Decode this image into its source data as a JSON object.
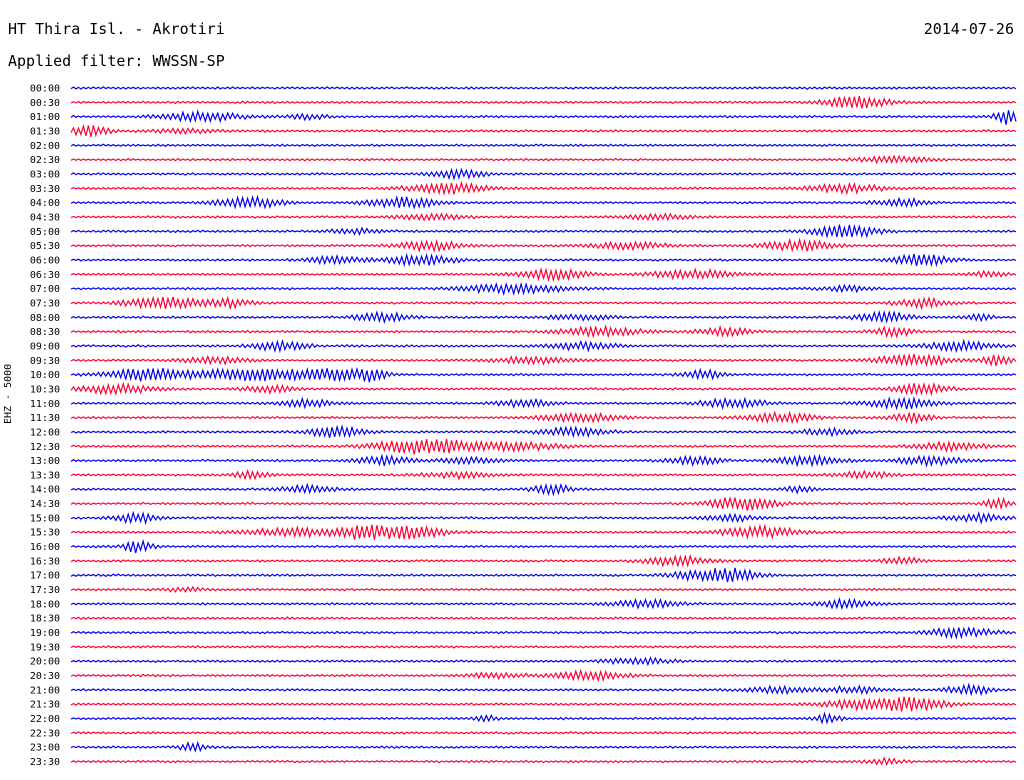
{
  "header": {
    "station": "HT Thira Isl. - Akrotiri",
    "date": "2014-07-26",
    "filter_label": "Applied filter: WWSSN-SP"
  },
  "side_label": "EHZ - 5000",
  "colors": {
    "even": "#0000ee",
    "odd": "#ff0033"
  },
  "chart_data": {
    "type": "line",
    "title": "HT Thira Isl. - Akrotiri",
    "subtitle": "Applied filter: WWSSN-SP",
    "ylabel": "EHZ - 5000",
    "y_tick_labels": [
      "00:00",
      "00:30",
      "01:00",
      "01:30",
      "02:00",
      "02:30",
      "03:00",
      "03:30",
      "04:00",
      "04:30",
      "05:00",
      "05:30",
      "06:00",
      "06:30",
      "07:00",
      "07:30",
      "08:00",
      "08:30",
      "09:00",
      "09:30",
      "10:00",
      "10:30",
      "11:00",
      "11:30",
      "12:00",
      "12:30",
      "13:00",
      "13:30",
      "14:00",
      "14:30",
      "15:00",
      "15:30",
      "16:00",
      "16:30",
      "17:00",
      "17:30",
      "18:00",
      "18:30",
      "19:00",
      "19:30",
      "20:00",
      "20:30",
      "21:00",
      "21:30",
      "22:00",
      "22:30",
      "23:00",
      "23:30"
    ],
    "trace_minutes": 30,
    "bursts": [
      [],
      [
        [
          0.83,
          0.05,
          1.8
        ]
      ],
      [
        [
          0.14,
          0.06,
          1.4
        ],
        [
          0.25,
          0.03,
          0.8
        ],
        [
          0.99,
          0.02,
          2.2
        ]
      ],
      [
        [
          0.02,
          0.03,
          1.6
        ],
        [
          0.12,
          0.05,
          0.6
        ]
      ],
      [],
      [
        [
          0.87,
          0.05,
          1.0
        ]
      ],
      [
        [
          0.41,
          0.04,
          1.2
        ]
      ],
      [
        [
          0.4,
          0.06,
          1.6
        ],
        [
          0.82,
          0.06,
          1.2
        ]
      ],
      [
        [
          0.19,
          0.05,
          1.6
        ],
        [
          0.35,
          0.05,
          1.6
        ],
        [
          0.88,
          0.04,
          1.2
        ]
      ],
      [
        [
          0.38,
          0.05,
          1.0
        ],
        [
          0.62,
          0.05,
          0.8
        ]
      ],
      [
        [
          0.3,
          0.04,
          0.8
        ],
        [
          0.82,
          0.05,
          1.8
        ]
      ],
      [
        [
          0.38,
          0.05,
          1.4
        ],
        [
          0.59,
          0.06,
          1.0
        ],
        [
          0.77,
          0.05,
          1.6
        ]
      ],
      [
        [
          0.28,
          0.04,
          1.2
        ],
        [
          0.37,
          0.05,
          1.6
        ],
        [
          0.9,
          0.04,
          1.8
        ]
      ],
      [
        [
          0.51,
          0.05,
          1.6
        ],
        [
          0.66,
          0.06,
          1.4
        ],
        [
          0.97,
          0.03,
          0.8
        ]
      ],
      [
        [
          0.47,
          0.08,
          1.4
        ],
        [
          0.82,
          0.04,
          0.8
        ]
      ],
      [
        [
          0.1,
          0.06,
          1.8
        ],
        [
          0.17,
          0.03,
          1.2
        ],
        [
          0.9,
          0.04,
          1.4
        ]
      ],
      [
        [
          0.33,
          0.04,
          1.4
        ],
        [
          0.54,
          0.05,
          0.8
        ],
        [
          0.86,
          0.04,
          1.6
        ],
        [
          0.96,
          0.02,
          1.0
        ]
      ],
      [
        [
          0.56,
          0.06,
          1.4
        ],
        [
          0.69,
          0.04,
          1.2
        ],
        [
          0.87,
          0.03,
          1.4
        ]
      ],
      [
        [
          0.22,
          0.04,
          1.4
        ],
        [
          0.54,
          0.05,
          1.2
        ],
        [
          0.94,
          0.05,
          1.4
        ]
      ],
      [
        [
          0.15,
          0.05,
          1.0
        ],
        [
          0.49,
          0.06,
          1.0
        ],
        [
          0.89,
          0.06,
          1.6
        ],
        [
          0.98,
          0.02,
          1.6
        ]
      ],
      [
        [
          0.08,
          0.06,
          1.8
        ],
        [
          0.19,
          0.08,
          2.0
        ],
        [
          0.28,
          0.05,
          1.6
        ],
        [
          0.32,
          0.02,
          1.6
        ],
        [
          0.67,
          0.03,
          1.4
        ]
      ],
      [
        [
          0.05,
          0.06,
          1.4
        ],
        [
          0.21,
          0.04,
          1.0
        ],
        [
          0.9,
          0.04,
          1.6
        ]
      ],
      [
        [
          0.25,
          0.04,
          1.2
        ],
        [
          0.48,
          0.04,
          1.2
        ],
        [
          0.7,
          0.05,
          1.4
        ],
        [
          0.88,
          0.05,
          1.6
        ]
      ],
      [
        [
          0.54,
          0.06,
          1.2
        ],
        [
          0.75,
          0.05,
          1.4
        ],
        [
          0.89,
          0.03,
          1.4
        ]
      ],
      [
        [
          0.28,
          0.04,
          1.6
        ],
        [
          0.53,
          0.05,
          1.2
        ],
        [
          0.8,
          0.04,
          1.0
        ]
      ],
      [
        [
          0.36,
          0.06,
          1.0
        ],
        [
          0.39,
          0.08,
          1.6
        ],
        [
          0.48,
          0.06,
          1.0
        ],
        [
          0.93,
          0.05,
          1.2
        ]
      ],
      [
        [
          0.33,
          0.04,
          1.4
        ],
        [
          0.42,
          0.05,
          0.8
        ],
        [
          0.66,
          0.04,
          1.2
        ],
        [
          0.78,
          0.05,
          1.4
        ],
        [
          0.91,
          0.05,
          1.4
        ]
      ],
      [
        [
          0.19,
          0.03,
          1.0
        ],
        [
          0.41,
          0.05,
          1.0
        ],
        [
          0.84,
          0.04,
          1.0
        ]
      ],
      [
        [
          0.25,
          0.04,
          1.2
        ],
        [
          0.51,
          0.03,
          1.4
        ],
        [
          0.77,
          0.02,
          1.2
        ]
      ],
      [
        [
          0.71,
          0.05,
          2.0
        ],
        [
          0.98,
          0.02,
          1.6
        ]
      ],
      [
        [
          0.07,
          0.03,
          1.6
        ],
        [
          0.7,
          0.04,
          1.0
        ],
        [
          0.96,
          0.04,
          1.2
        ]
      ],
      [
        [
          0.24,
          0.08,
          1.2
        ],
        [
          0.31,
          0.03,
          2.0
        ],
        [
          0.36,
          0.05,
          2.0
        ],
        [
          0.73,
          0.06,
          1.6
        ]
      ],
      [
        [
          0.07,
          0.02,
          1.8
        ]
      ],
      [
        [
          0.64,
          0.05,
          1.4
        ],
        [
          0.88,
          0.03,
          1.0
        ]
      ],
      [
        [
          0.66,
          0.04,
          1.2
        ],
        [
          0.7,
          0.04,
          2.0
        ]
      ],
      [
        [
          0.12,
          0.03,
          0.6
        ]
      ],
      [
        [
          0.61,
          0.05,
          1.2
        ],
        [
          0.82,
          0.04,
          1.4
        ]
      ],
      [],
      [
        [
          0.94,
          0.05,
          1.4
        ]
      ],
      [],
      [
        [
          0.6,
          0.05,
          1.0
        ]
      ],
      [
        [
          0.45,
          0.05,
          0.8
        ],
        [
          0.55,
          0.05,
          1.4
        ]
      ],
      [
        [
          0.75,
          0.05,
          1.0
        ],
        [
          0.83,
          0.04,
          1.0
        ],
        [
          0.95,
          0.03,
          1.6
        ]
      ],
      [
        [
          0.83,
          0.05,
          1.4
        ],
        [
          0.89,
          0.05,
          2.0
        ]
      ],
      [
        [
          0.44,
          0.02,
          0.8
        ],
        [
          0.8,
          0.02,
          1.4
        ]
      ],
      [],
      [
        [
          0.13,
          0.02,
          1.4
        ]
      ],
      [
        [
          0.86,
          0.03,
          0.8
        ]
      ]
    ]
  }
}
